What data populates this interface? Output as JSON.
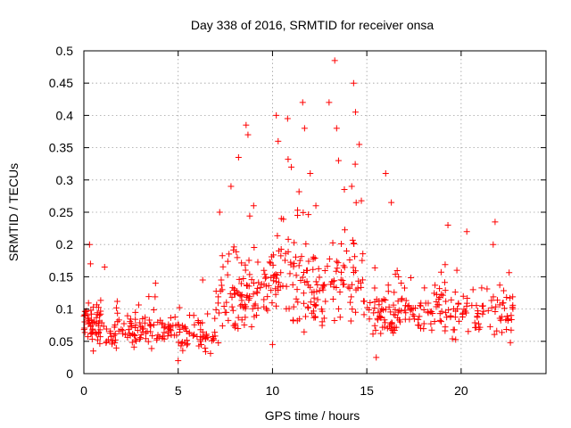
{
  "chart_data": {
    "type": "scatter",
    "title": "Day 338 of 2016, SRMTID for receiver onsa",
    "xlabel": "GPS time / hours",
    "ylabel": "SRMTID / TECUs",
    "xlim": [
      0,
      24.5
    ],
    "ylim": [
      0,
      0.5
    ],
    "x_ticks": [
      0,
      5,
      10,
      15,
      20
    ],
    "y_ticks": [
      0,
      0.05,
      0.1,
      0.15,
      0.2,
      0.25,
      0.3,
      0.35,
      0.4,
      0.45,
      0.5
    ],
    "x_tick_labels": [
      "0",
      "5",
      "10",
      "15",
      "20"
    ],
    "y_tick_labels": [
      "0",
      "0.05",
      "0.1",
      "0.15",
      "0.2",
      "0.25",
      "0.3",
      "0.35",
      "0.4",
      "0.45",
      "0.5"
    ],
    "grid": true,
    "marker": "+",
    "color": "#ff0000",
    "points_per_segment": 55,
    "segments": [
      {
        "x": [
          0.0,
          1.0
        ],
        "base": 0.075,
        "spread": 0.03
      },
      {
        "x": [
          1.0,
          3.0
        ],
        "base": 0.065,
        "spread": 0.025
      },
      {
        "x": [
          3.0,
          5.0
        ],
        "base": 0.065,
        "spread": 0.025
      },
      {
        "x": [
          5.0,
          7.0
        ],
        "base": 0.06,
        "spread": 0.025
      },
      {
        "x": [
          7.0,
          8.5
        ],
        "base": 0.11,
        "spread": 0.045
      },
      {
        "x": [
          8.5,
          10.0
        ],
        "base": 0.13,
        "spread": 0.05
      },
      {
        "x": [
          10.0,
          11.5
        ],
        "base": 0.15,
        "spread": 0.06
      },
      {
        "x": [
          11.5,
          13.0
        ],
        "base": 0.12,
        "spread": 0.055
      },
      {
        "x": [
          13.0,
          14.8
        ],
        "base": 0.14,
        "spread": 0.06
      },
      {
        "x": [
          14.8,
          16.5
        ],
        "base": 0.085,
        "spread": 0.035
      },
      {
        "x": [
          16.5,
          18.5
        ],
        "base": 0.09,
        "spread": 0.035
      },
      {
        "x": [
          18.5,
          20.5
        ],
        "base": 0.1,
        "spread": 0.04
      },
      {
        "x": [
          20.5,
          22.8
        ],
        "base": 0.095,
        "spread": 0.035
      }
    ],
    "peaks": [
      {
        "x": 0.3,
        "y": 0.2
      },
      {
        "x": 0.35,
        "y": 0.17
      },
      {
        "x": 1.1,
        "y": 0.165
      },
      {
        "x": 3.8,
        "y": 0.14
      },
      {
        "x": 6.3,
        "y": 0.145
      },
      {
        "x": 7.2,
        "y": 0.25
      },
      {
        "x": 7.8,
        "y": 0.29
      },
      {
        "x": 8.2,
        "y": 0.335
      },
      {
        "x": 8.6,
        "y": 0.385
      },
      {
        "x": 8.7,
        "y": 0.37
      },
      {
        "x": 9.0,
        "y": 0.26
      },
      {
        "x": 10.2,
        "y": 0.4
      },
      {
        "x": 10.3,
        "y": 0.36
      },
      {
        "x": 10.8,
        "y": 0.395
      },
      {
        "x": 11.0,
        "y": 0.32
      },
      {
        "x": 11.6,
        "y": 0.42
      },
      {
        "x": 11.7,
        "y": 0.38
      },
      {
        "x": 12.0,
        "y": 0.31
      },
      {
        "x": 12.3,
        "y": 0.26
      },
      {
        "x": 13.0,
        "y": 0.42
      },
      {
        "x": 13.3,
        "y": 0.485
      },
      {
        "x": 13.4,
        "y": 0.38
      },
      {
        "x": 13.5,
        "y": 0.33
      },
      {
        "x": 14.3,
        "y": 0.45
      },
      {
        "x": 14.4,
        "y": 0.405
      },
      {
        "x": 14.6,
        "y": 0.355
      },
      {
        "x": 14.2,
        "y": 0.29
      },
      {
        "x": 16.0,
        "y": 0.31
      },
      {
        "x": 16.3,
        "y": 0.265
      },
      {
        "x": 19.3,
        "y": 0.23
      },
      {
        "x": 20.3,
        "y": 0.22
      },
      {
        "x": 21.8,
        "y": 0.235
      },
      {
        "x": 21.7,
        "y": 0.2
      },
      {
        "x": 15.5,
        "y": 0.025
      },
      {
        "x": 5.0,
        "y": 0.02
      },
      {
        "x": 0.5,
        "y": 0.035
      },
      {
        "x": 10.0,
        "y": 0.045
      }
    ]
  }
}
